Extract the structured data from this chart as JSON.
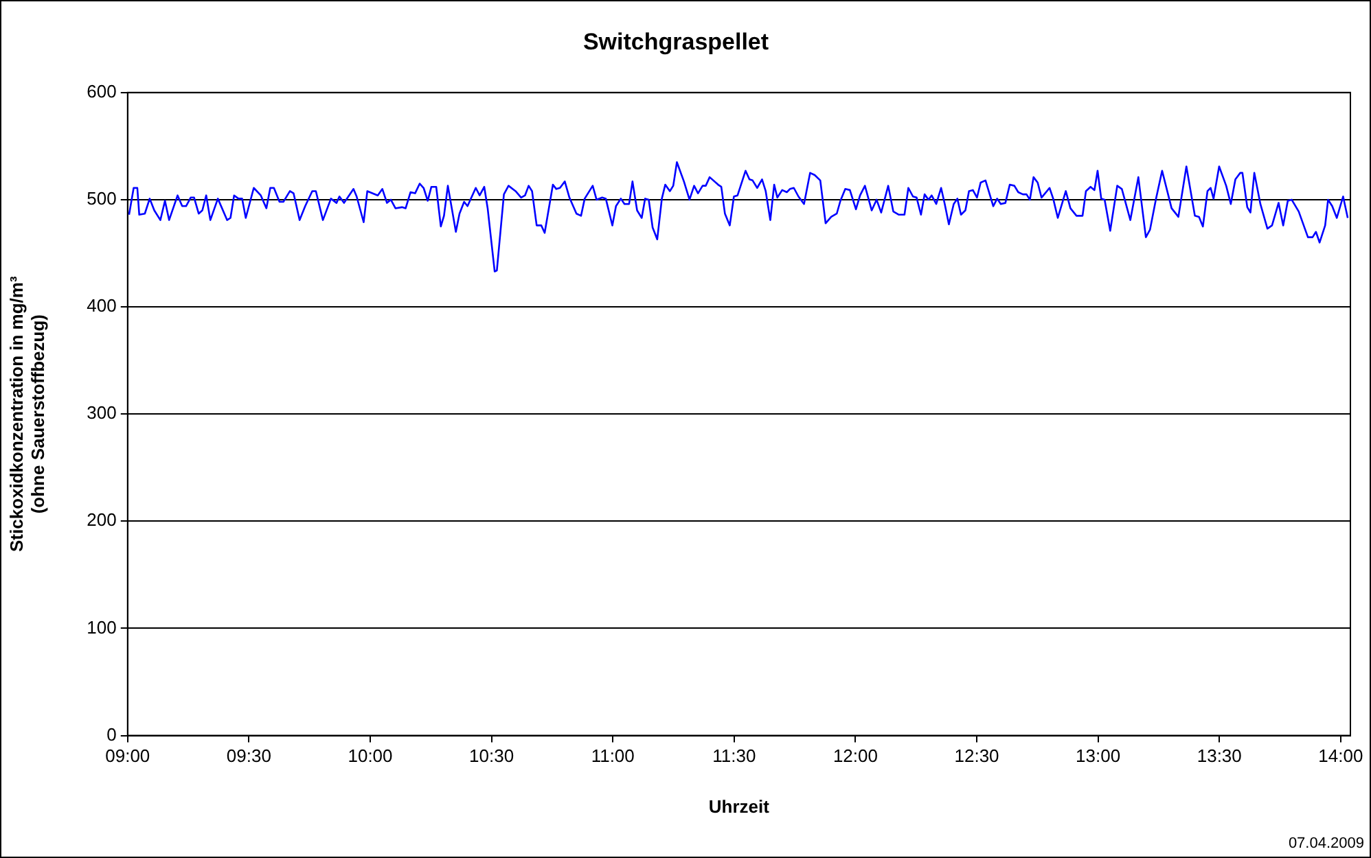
{
  "chart_data": {
    "type": "line",
    "title": "Switchgraspellet",
    "xlabel": "Uhrzeit",
    "ylabel": "Stickoxidkonzentration in mg/m³\n(ohne Sauerstoffbezug)",
    "annotations": [
      "07.04.2009"
    ],
    "x": [
      9.006,
      9.025,
      9.04,
      9.048,
      9.071,
      9.091,
      9.11,
      9.135,
      9.154,
      9.171,
      9.206,
      9.225,
      9.241,
      9.26,
      9.274,
      9.293,
      9.308,
      9.324,
      9.341,
      9.372,
      9.41,
      9.424,
      9.439,
      9.457,
      9.472,
      9.487,
      9.52,
      9.549,
      9.572,
      9.588,
      9.603,
      9.626,
      9.642,
      9.669,
      9.684,
      9.709,
      9.732,
      9.761,
      9.776,
      9.805,
      9.838,
      9.861,
      9.873,
      9.892,
      9.931,
      9.944,
      9.973,
      9.988,
      10.031,
      10.05,
      10.069,
      10.085,
      10.104,
      10.131,
      10.146,
      10.166,
      10.185,
      10.204,
      10.22,
      10.237,
      10.252,
      10.272,
      10.291,
      10.304,
      10.32,
      10.353,
      10.368,
      10.387,
      10.401,
      10.435,
      10.451,
      10.47,
      10.484,
      10.513,
      10.522,
      10.551,
      10.57,
      10.599,
      10.622,
      10.638,
      10.653,
      10.667,
      10.686,
      10.705,
      10.719,
      10.753,
      10.767,
      10.782,
      10.802,
      10.821,
      10.85,
      10.869,
      10.884,
      10.917,
      10.933,
      10.956,
      10.971,
      10.998,
      11.013,
      11.033,
      11.048,
      11.067,
      11.081,
      11.1,
      11.119,
      11.133,
      11.148,
      11.164,
      11.183,
      11.202,
      11.216,
      11.235,
      11.249,
      11.264,
      11.293,
      11.316,
      11.335,
      11.351,
      11.37,
      11.383,
      11.399,
      11.434,
      11.447,
      11.462,
      11.482,
      11.499,
      11.514,
      11.547,
      11.563,
      11.576,
      11.595,
      11.615,
      11.63,
      11.649,
      11.665,
      11.678,
      11.698,
      11.717,
      11.73,
      11.746,
      11.765,
      11.788,
      11.813,
      11.832,
      11.855,
      11.877,
      11.9,
      11.923,
      11.938,
      11.958,
      11.977,
      12.002,
      12.019,
      12.039,
      12.067,
      12.087,
      12.106,
      12.135,
      12.156,
      12.179,
      12.202,
      12.218,
      12.237,
      12.252,
      12.27,
      12.285,
      12.301,
      12.314,
      12.333,
      12.353,
      12.368,
      12.385,
      12.405,
      12.42,
      12.435,
      12.453,
      12.468,
      12.484,
      12.501,
      12.516,
      12.536,
      12.568,
      12.584,
      12.599,
      12.618,
      12.636,
      12.655,
      12.671,
      12.69,
      12.705,
      12.719,
      12.734,
      12.751,
      12.767,
      12.8,
      12.815,
      12.834,
      12.867,
      12.886,
      12.911,
      12.936,
      12.95,
      12.969,
      12.985,
      12.998,
      13.013,
      13.027,
      13.05,
      13.079,
      13.098,
      13.133,
      13.166,
      13.197,
      13.214,
      13.239,
      13.264,
      13.303,
      13.331,
      13.364,
      13.399,
      13.416,
      13.432,
      13.451,
      13.464,
      13.476,
      13.499,
      13.528,
      13.547,
      13.566,
      13.586,
      13.595,
      13.615,
      13.628,
      13.644,
      13.669,
      13.698,
      13.717,
      13.744,
      13.763,
      13.782,
      13.798,
      13.827,
      13.865,
      13.884,
      13.898,
      13.913,
      13.936,
      13.948,
      13.965,
      13.984,
      14.01,
      14.029
    ],
    "series": [
      {
        "color": "#0000ff",
        "values": [
          486,
          511,
          511,
          486,
          487,
          501,
          490,
          481,
          499,
          481,
          504,
          494,
          494,
          502,
          502,
          487,
          490,
          504,
          481,
          501,
          481,
          483,
          504,
          501,
          501,
          483,
          511,
          504,
          492,
          511,
          511,
          498,
          498,
          508,
          506,
          481,
          494,
          508,
          508,
          481,
          501,
          497,
          503,
          497,
          510,
          503,
          479,
          508,
          504,
          510,
          497,
          500,
          492,
          493,
          492,
          507,
          506,
          515,
          511,
          499,
          512,
          512,
          475,
          485,
          513,
          470,
          487,
          498,
          494,
          511,
          504,
          512,
          492,
          433,
          434,
          505,
          513,
          508,
          502,
          504,
          513,
          508,
          476,
          476,
          469,
          514,
          510,
          511,
          517,
          502,
          487,
          485,
          501,
          513,
          500,
          502,
          501,
          476,
          494,
          501,
          496,
          496,
          517,
          490,
          483,
          501,
          500,
          474,
          463,
          501,
          514,
          508,
          513,
          535,
          517,
          500,
          513,
          506,
          513,
          513,
          521,
          514,
          512,
          487,
          476,
          503,
          504,
          527,
          519,
          518,
          511,
          519,
          508,
          481,
          514,
          502,
          509,
          507,
          510,
          511,
          503,
          496,
          525,
          523,
          518,
          478,
          484,
          487,
          499,
          510,
          509,
          491,
          504,
          513,
          490,
          500,
          488,
          513,
          489,
          486,
          486,
          511,
          503,
          502,
          486,
          505,
          500,
          504,
          496,
          511,
          496,
          477,
          496,
          501,
          486,
          490,
          508,
          509,
          502,
          516,
          518,
          494,
          501,
          496,
          497,
          514,
          513,
          507,
          505,
          505,
          500,
          521,
          516,
          502,
          511,
          501,
          483,
          508,
          492,
          485,
          485,
          508,
          512,
          509,
          527,
          501,
          500,
          471,
          513,
          510,
          481,
          521,
          465,
          472,
          501,
          527,
          492,
          484,
          531,
          485,
          484,
          475,
          508,
          511,
          501,
          531,
          513,
          496,
          519,
          525,
          525,
          493,
          488,
          525,
          496,
          473,
          476,
          497,
          476,
          499,
          500,
          489,
          465,
          465,
          470,
          460,
          476,
          500,
          494,
          483,
          503,
          483
        ]
      }
    ],
    "xlim": [
      9,
      14.04
    ],
    "xticks": [
      {
        "value": 9,
        "label": "09:00"
      },
      {
        "value": 9.5,
        "label": "09:30"
      },
      {
        "value": 10,
        "label": "10:00"
      },
      {
        "value": 10.5,
        "label": "10:30"
      },
      {
        "value": 11,
        "label": "11:00"
      },
      {
        "value": 11.5,
        "label": "11:30"
      },
      {
        "value": 12,
        "label": "12:00"
      },
      {
        "value": 12.5,
        "label": "12:30"
      },
      {
        "value": 13,
        "label": "13:00"
      },
      {
        "value": 13.5,
        "label": "13:30"
      },
      {
        "value": 14,
        "label": "14:00"
      }
    ],
    "ylim": [
      0,
      600
    ],
    "yticks": [
      0,
      100,
      200,
      300,
      400,
      500,
      600
    ],
    "grid": "y",
    "marker": "none",
    "line_style": "solid"
  }
}
